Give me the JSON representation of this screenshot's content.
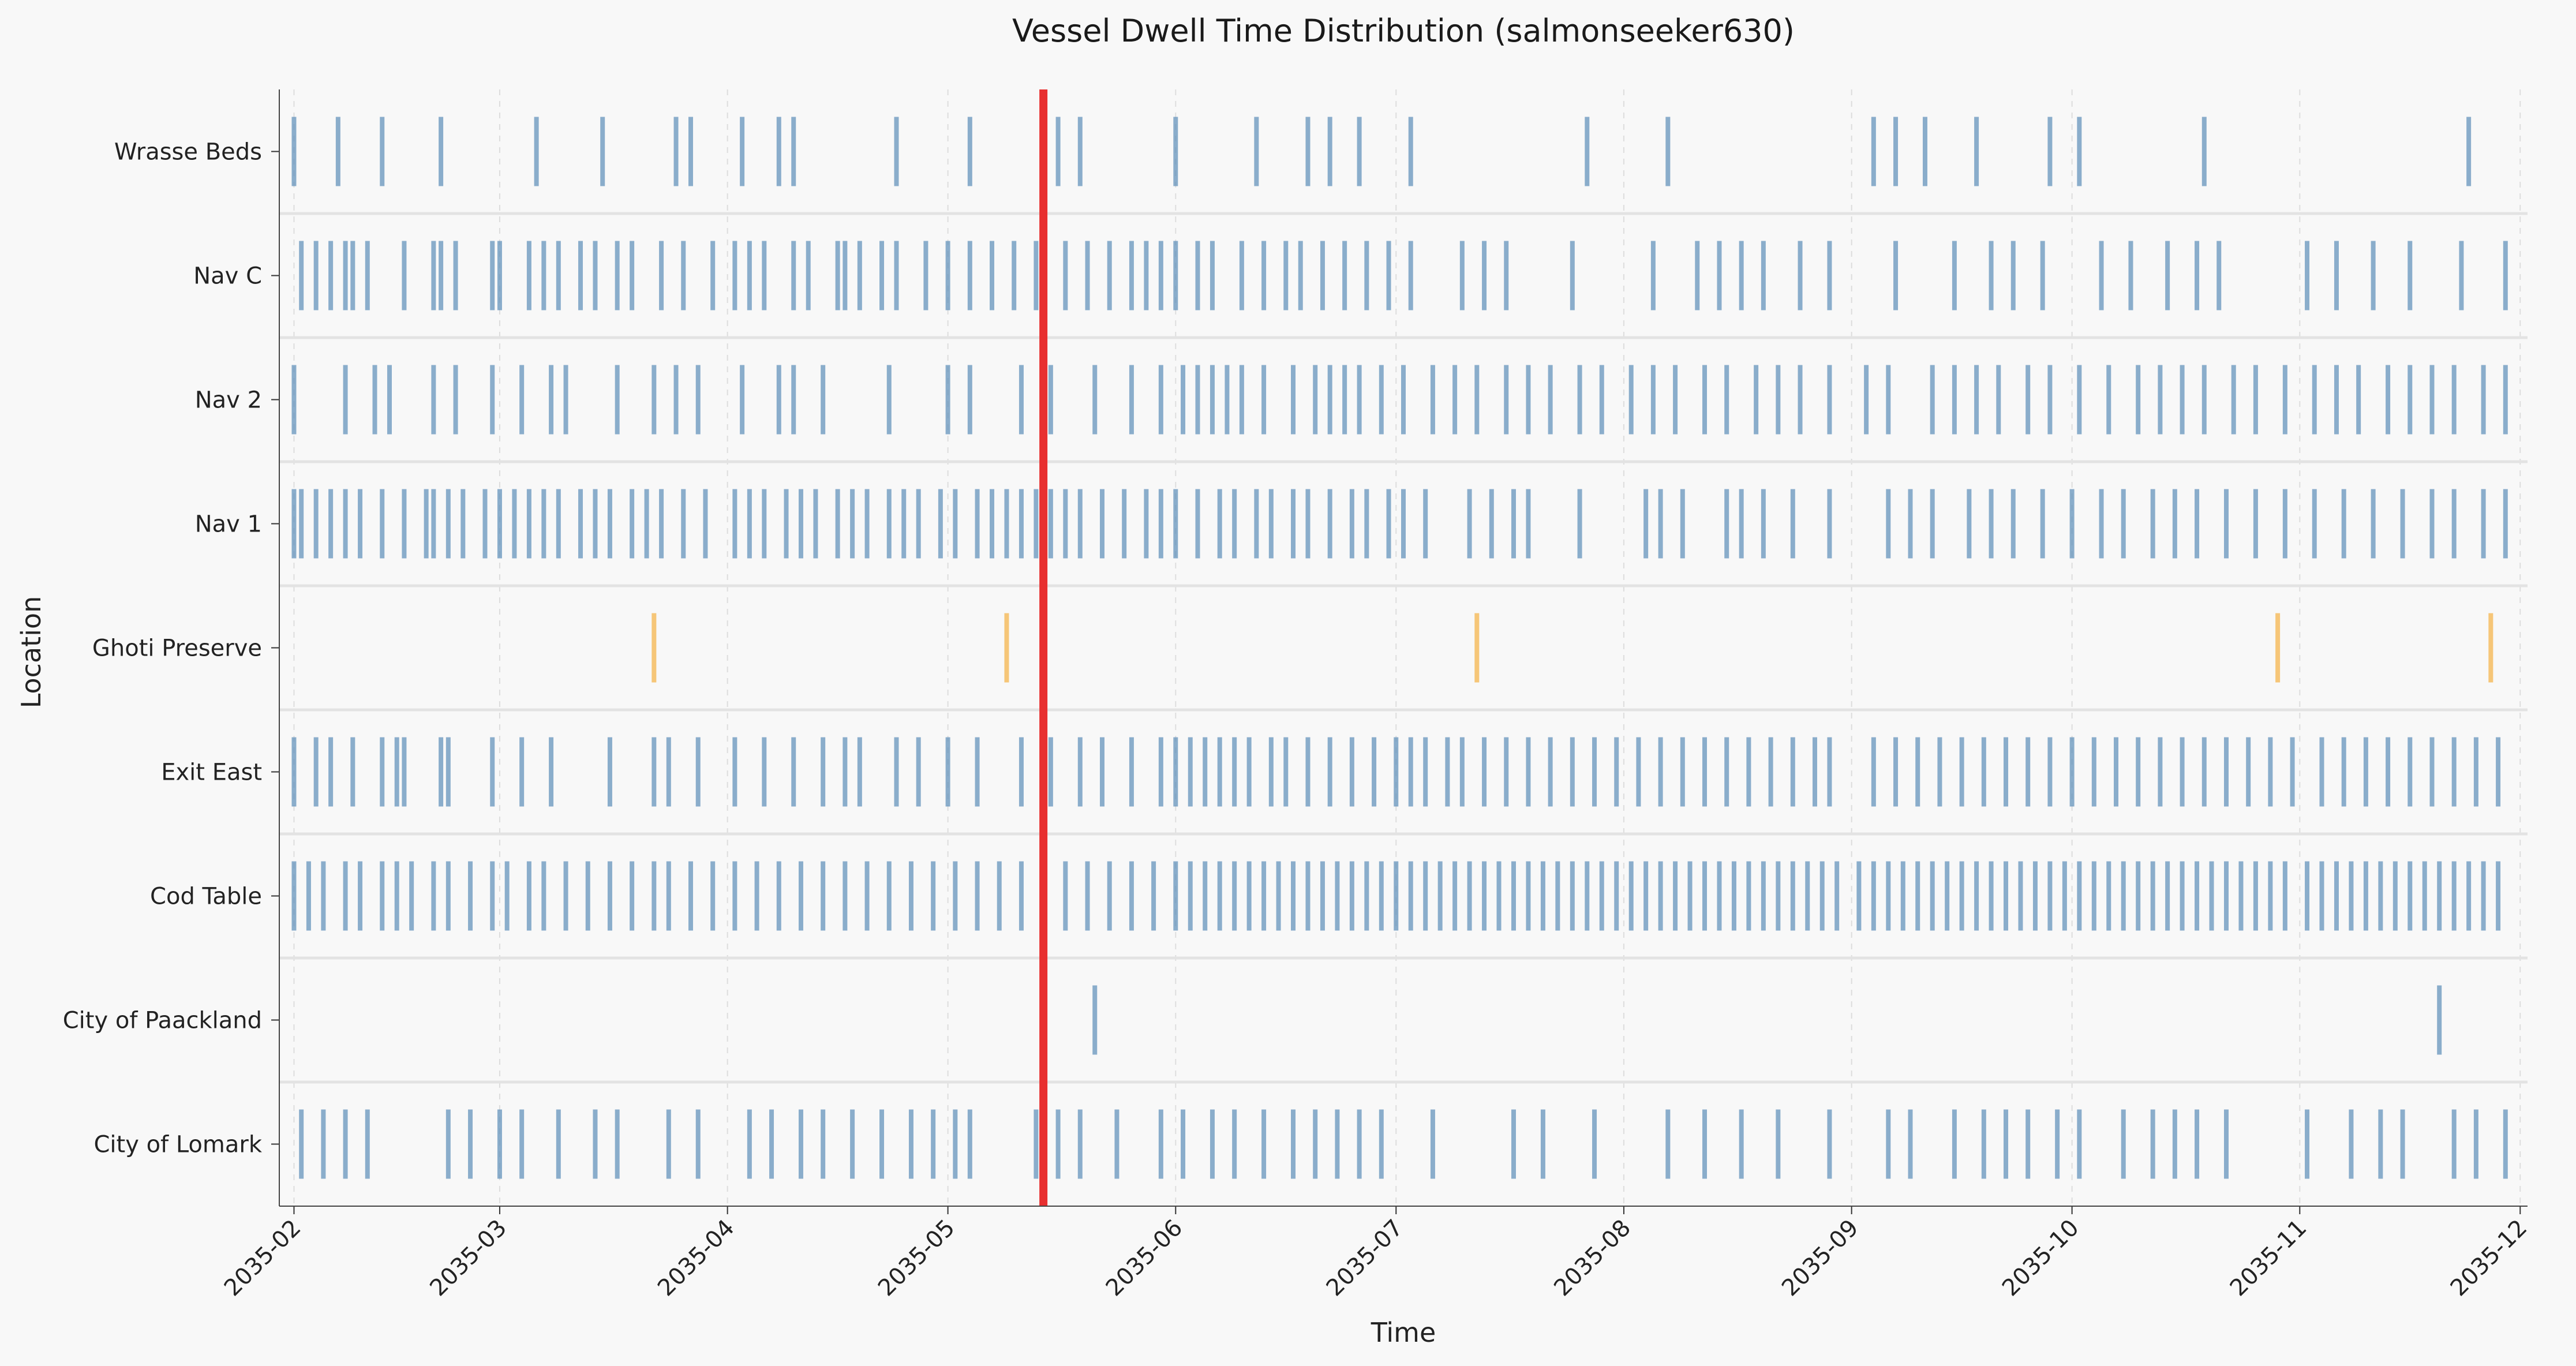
{
  "chart_data": {
    "type": "timeline",
    "title": "Vessel Dwell Time Distribution (salmonseeker630)",
    "xlabel": "Time",
    "ylabel": "Location",
    "xlim": [
      "2035-01-30",
      "2035-12-02"
    ],
    "x_ticks": [
      "2035-02",
      "2035-03",
      "2035-04",
      "2035-05",
      "2035-06",
      "2035-07",
      "2035-08",
      "2035-09",
      "2035-10",
      "2035-11",
      "2035-12"
    ],
    "grid": true,
    "highlight_line": {
      "date": "2035-05-14",
      "color": "#e83030"
    },
    "colors": {
      "default": "#5b8db8",
      "highlight": "#f5b041",
      "background": "#f8f8f8"
    },
    "rows": [
      {
        "label": "Wrasse Beds",
        "color": "#5b8db8",
        "events": [
          "2035-02-01",
          "2035-02-07",
          "2035-02-13",
          "2035-02-21",
          "2035-03-06",
          "2035-03-15",
          "2035-03-25",
          "2035-03-27",
          "2035-04-03",
          "2035-04-08",
          "2035-04-10",
          "2035-04-24",
          "2035-05-04",
          "2035-05-16",
          "2035-05-19",
          "2035-06-01",
          "2035-06-12",
          "2035-06-19",
          "2035-06-22",
          "2035-06-26",
          "2035-07-03",
          "2035-07-27",
          "2035-08-07",
          "2035-09-04",
          "2035-09-07",
          "2035-09-11",
          "2035-09-18",
          "2035-09-28",
          "2035-10-02",
          "2035-10-19",
          "2035-11-24"
        ]
      },
      {
        "label": "Nav C",
        "color": "#5b8db8",
        "events": [
          "2035-02-02",
          "2035-02-04",
          "2035-02-06",
          "2035-02-08",
          "2035-02-09",
          "2035-02-11",
          "2035-02-16",
          "2035-02-20",
          "2035-02-21",
          "2035-02-23",
          "2035-02-28",
          "2035-03-01",
          "2035-03-05",
          "2035-03-07",
          "2035-03-09",
          "2035-03-12",
          "2035-03-14",
          "2035-03-17",
          "2035-03-19",
          "2035-03-23",
          "2035-03-26",
          "2035-03-30",
          "2035-04-02",
          "2035-04-04",
          "2035-04-06",
          "2035-04-10",
          "2035-04-12",
          "2035-04-16",
          "2035-04-17",
          "2035-04-19",
          "2035-04-22",
          "2035-04-24",
          "2035-04-28",
          "2035-05-01",
          "2035-05-04",
          "2035-05-07",
          "2035-05-10",
          "2035-05-13",
          "2035-05-17",
          "2035-05-20",
          "2035-05-23",
          "2035-05-26",
          "2035-05-28",
          "2035-05-30",
          "2035-06-01",
          "2035-06-04",
          "2035-06-06",
          "2035-06-10",
          "2035-06-13",
          "2035-06-16",
          "2035-06-18",
          "2035-06-21",
          "2035-06-24",
          "2035-06-27",
          "2035-06-30",
          "2035-07-03",
          "2035-07-10",
          "2035-07-13",
          "2035-07-16",
          "2035-07-25",
          "2035-08-05",
          "2035-08-11",
          "2035-08-14",
          "2035-08-17",
          "2035-08-20",
          "2035-08-25",
          "2035-08-29",
          "2035-09-07",
          "2035-09-15",
          "2035-09-20",
          "2035-09-23",
          "2035-09-27",
          "2035-10-05",
          "2035-10-09",
          "2035-10-14",
          "2035-10-18",
          "2035-10-21",
          "2035-11-02",
          "2035-11-06",
          "2035-11-11",
          "2035-11-16",
          "2035-11-23",
          "2035-11-29"
        ]
      },
      {
        "label": "Nav 2",
        "color": "#5b8db8",
        "events": [
          "2035-02-01",
          "2035-02-08",
          "2035-02-12",
          "2035-02-14",
          "2035-02-20",
          "2035-02-23",
          "2035-02-28",
          "2035-03-04",
          "2035-03-08",
          "2035-03-10",
          "2035-03-17",
          "2035-03-22",
          "2035-03-25",
          "2035-03-28",
          "2035-04-03",
          "2035-04-08",
          "2035-04-10",
          "2035-04-14",
          "2035-04-23",
          "2035-05-01",
          "2035-05-04",
          "2035-05-11",
          "2035-05-15",
          "2035-05-21",
          "2035-05-26",
          "2035-05-30",
          "2035-06-02",
          "2035-06-04",
          "2035-06-06",
          "2035-06-08",
          "2035-06-10",
          "2035-06-13",
          "2035-06-17",
          "2035-06-20",
          "2035-06-22",
          "2035-06-24",
          "2035-06-26",
          "2035-06-29",
          "2035-07-02",
          "2035-07-06",
          "2035-07-09",
          "2035-07-12",
          "2035-07-16",
          "2035-07-19",
          "2035-07-22",
          "2035-07-26",
          "2035-07-29",
          "2035-08-02",
          "2035-08-05",
          "2035-08-08",
          "2035-08-12",
          "2035-08-15",
          "2035-08-19",
          "2035-08-22",
          "2035-08-25",
          "2035-08-29",
          "2035-09-03",
          "2035-09-06",
          "2035-09-12",
          "2035-09-15",
          "2035-09-18",
          "2035-09-21",
          "2035-09-25",
          "2035-09-28",
          "2035-10-02",
          "2035-10-06",
          "2035-10-10",
          "2035-10-13",
          "2035-10-16",
          "2035-10-19",
          "2035-10-23",
          "2035-10-26",
          "2035-10-30",
          "2035-11-03",
          "2035-11-06",
          "2035-11-09",
          "2035-11-13",
          "2035-11-16",
          "2035-11-19",
          "2035-11-22",
          "2035-11-26",
          "2035-11-29"
        ]
      },
      {
        "label": "Nav 1",
        "color": "#5b8db8",
        "events": [
          "2035-02-01",
          "2035-02-02",
          "2035-02-04",
          "2035-02-06",
          "2035-02-08",
          "2035-02-10",
          "2035-02-13",
          "2035-02-16",
          "2035-02-19",
          "2035-02-20",
          "2035-02-22",
          "2035-02-24",
          "2035-02-27",
          "2035-03-01",
          "2035-03-03",
          "2035-03-05",
          "2035-03-07",
          "2035-03-09",
          "2035-03-12",
          "2035-03-14",
          "2035-03-16",
          "2035-03-19",
          "2035-03-21",
          "2035-03-23",
          "2035-03-26",
          "2035-03-29",
          "2035-04-02",
          "2035-04-04",
          "2035-04-06",
          "2035-04-09",
          "2035-04-11",
          "2035-04-13",
          "2035-04-16",
          "2035-04-18",
          "2035-04-20",
          "2035-04-23",
          "2035-04-25",
          "2035-04-27",
          "2035-04-30",
          "2035-05-02",
          "2035-05-05",
          "2035-05-07",
          "2035-05-09",
          "2035-05-11",
          "2035-05-13",
          "2035-05-15",
          "2035-05-17",
          "2035-05-19",
          "2035-05-22",
          "2035-05-25",
          "2035-05-28",
          "2035-05-30",
          "2035-06-01",
          "2035-06-04",
          "2035-06-07",
          "2035-06-09",
          "2035-06-12",
          "2035-06-14",
          "2035-06-17",
          "2035-06-19",
          "2035-06-22",
          "2035-06-25",
          "2035-06-27",
          "2035-06-30",
          "2035-07-02",
          "2035-07-05",
          "2035-07-11",
          "2035-07-14",
          "2035-07-17",
          "2035-07-19",
          "2035-07-26",
          "2035-08-04",
          "2035-08-06",
          "2035-08-09",
          "2035-08-15",
          "2035-08-17",
          "2035-08-20",
          "2035-08-24",
          "2035-08-29",
          "2035-09-06",
          "2035-09-09",
          "2035-09-12",
          "2035-09-17",
          "2035-09-20",
          "2035-09-23",
          "2035-09-27",
          "2035-10-01",
          "2035-10-05",
          "2035-10-08",
          "2035-10-12",
          "2035-10-15",
          "2035-10-18",
          "2035-10-22",
          "2035-10-26",
          "2035-10-30",
          "2035-11-03",
          "2035-11-07",
          "2035-11-11",
          "2035-11-15",
          "2035-11-19",
          "2035-11-22",
          "2035-11-26",
          "2035-11-29"
        ]
      },
      {
        "label": "Ghoti Preserve",
        "color": "#f5b041",
        "events": [
          "2035-03-22",
          "2035-05-09",
          "2035-07-12",
          "2035-10-29",
          "2035-11-27"
        ]
      },
      {
        "label": "Exit East",
        "color": "#5b8db8",
        "events": [
          "2035-02-01",
          "2035-02-04",
          "2035-02-06",
          "2035-02-09",
          "2035-02-13",
          "2035-02-15",
          "2035-02-16",
          "2035-02-21",
          "2035-02-22",
          "2035-02-28",
          "2035-03-04",
          "2035-03-08",
          "2035-03-16",
          "2035-03-22",
          "2035-03-24",
          "2035-03-28",
          "2035-04-02",
          "2035-04-06",
          "2035-04-10",
          "2035-04-14",
          "2035-04-17",
          "2035-04-19",
          "2035-04-24",
          "2035-04-27",
          "2035-05-01",
          "2035-05-05",
          "2035-05-11",
          "2035-05-15",
          "2035-05-19",
          "2035-05-22",
          "2035-05-26",
          "2035-05-30",
          "2035-06-01",
          "2035-06-03",
          "2035-06-05",
          "2035-06-07",
          "2035-06-09",
          "2035-06-11",
          "2035-06-14",
          "2035-06-16",
          "2035-06-19",
          "2035-06-22",
          "2035-06-25",
          "2035-06-28",
          "2035-07-01",
          "2035-07-03",
          "2035-07-05",
          "2035-07-08",
          "2035-07-10",
          "2035-07-13",
          "2035-07-16",
          "2035-07-19",
          "2035-07-22",
          "2035-07-25",
          "2035-07-28",
          "2035-07-31",
          "2035-08-03",
          "2035-08-06",
          "2035-08-09",
          "2035-08-12",
          "2035-08-15",
          "2035-08-18",
          "2035-08-21",
          "2035-08-24",
          "2035-08-27",
          "2035-08-29",
          "2035-09-04",
          "2035-09-07",
          "2035-09-10",
          "2035-09-13",
          "2035-09-16",
          "2035-09-19",
          "2035-09-22",
          "2035-09-25",
          "2035-09-28",
          "2035-10-01",
          "2035-10-04",
          "2035-10-07",
          "2035-10-10",
          "2035-10-13",
          "2035-10-16",
          "2035-10-19",
          "2035-10-22",
          "2035-10-25",
          "2035-10-28",
          "2035-10-31",
          "2035-11-04",
          "2035-11-07",
          "2035-11-10",
          "2035-11-13",
          "2035-11-16",
          "2035-11-19",
          "2035-11-22",
          "2035-11-25",
          "2035-11-28"
        ]
      },
      {
        "label": "Cod Table",
        "color": "#5b8db8",
        "events": [
          "2035-02-01",
          "2035-02-03",
          "2035-02-05",
          "2035-02-08",
          "2035-02-10",
          "2035-02-13",
          "2035-02-15",
          "2035-02-17",
          "2035-02-20",
          "2035-02-22",
          "2035-02-25",
          "2035-02-28",
          "2035-03-02",
          "2035-03-05",
          "2035-03-07",
          "2035-03-10",
          "2035-03-13",
          "2035-03-16",
          "2035-03-19",
          "2035-03-22",
          "2035-03-24",
          "2035-03-27",
          "2035-03-30",
          "2035-04-02",
          "2035-04-05",
          "2035-04-08",
          "2035-04-11",
          "2035-04-14",
          "2035-04-17",
          "2035-04-20",
          "2035-04-23",
          "2035-04-26",
          "2035-04-29",
          "2035-05-02",
          "2035-05-05",
          "2035-05-08",
          "2035-05-11",
          "2035-05-14",
          "2035-05-17",
          "2035-05-20",
          "2035-05-23",
          "2035-05-26",
          "2035-05-29",
          "2035-06-01",
          "2035-06-03",
          "2035-06-05",
          "2035-06-07",
          "2035-06-09",
          "2035-06-11",
          "2035-06-13",
          "2035-06-15",
          "2035-06-17",
          "2035-06-19",
          "2035-06-21",
          "2035-06-23",
          "2035-06-25",
          "2035-06-27",
          "2035-06-29",
          "2035-07-01",
          "2035-07-03",
          "2035-07-05",
          "2035-07-07",
          "2035-07-09",
          "2035-07-11",
          "2035-07-13",
          "2035-07-15",
          "2035-07-17",
          "2035-07-19",
          "2035-07-21",
          "2035-07-23",
          "2035-07-25",
          "2035-07-27",
          "2035-07-29",
          "2035-07-31",
          "2035-08-02",
          "2035-08-04",
          "2035-08-06",
          "2035-08-08",
          "2035-08-10",
          "2035-08-12",
          "2035-08-14",
          "2035-08-16",
          "2035-08-18",
          "2035-08-20",
          "2035-08-22",
          "2035-08-24",
          "2035-08-26",
          "2035-08-28",
          "2035-08-30",
          "2035-09-02",
          "2035-09-04",
          "2035-09-06",
          "2035-09-08",
          "2035-09-10",
          "2035-09-12",
          "2035-09-14",
          "2035-09-16",
          "2035-09-18",
          "2035-09-20",
          "2035-09-22",
          "2035-09-24",
          "2035-09-26",
          "2035-09-28",
          "2035-09-30",
          "2035-10-02",
          "2035-10-04",
          "2035-10-06",
          "2035-10-08",
          "2035-10-10",
          "2035-10-12",
          "2035-10-14",
          "2035-10-16",
          "2035-10-18",
          "2035-10-20",
          "2035-10-22",
          "2035-10-24",
          "2035-10-26",
          "2035-10-28",
          "2035-10-30",
          "2035-11-02",
          "2035-11-04",
          "2035-11-06",
          "2035-11-08",
          "2035-11-10",
          "2035-11-12",
          "2035-11-14",
          "2035-11-16",
          "2035-11-18",
          "2035-11-20",
          "2035-11-22",
          "2035-11-24",
          "2035-11-26",
          "2035-11-28"
        ]
      },
      {
        "label": "City of Paackland",
        "color": "#5b8db8",
        "events": [
          "2035-05-21",
          "2035-11-20"
        ]
      },
      {
        "label": "City of Lomark",
        "color": "#5b8db8",
        "events": [
          "2035-02-02",
          "2035-02-05",
          "2035-02-08",
          "2035-02-11",
          "2035-02-22",
          "2035-02-25",
          "2035-03-01",
          "2035-03-04",
          "2035-03-09",
          "2035-03-14",
          "2035-03-17",
          "2035-03-24",
          "2035-03-28",
          "2035-04-04",
          "2035-04-07",
          "2035-04-11",
          "2035-04-14",
          "2035-04-18",
          "2035-04-22",
          "2035-04-26",
          "2035-04-29",
          "2035-05-02",
          "2035-05-04",
          "2035-05-13",
          "2035-05-16",
          "2035-05-19",
          "2035-05-24",
          "2035-05-30",
          "2035-06-02",
          "2035-06-06",
          "2035-06-09",
          "2035-06-13",
          "2035-06-17",
          "2035-06-20",
          "2035-06-23",
          "2035-06-26",
          "2035-06-29",
          "2035-07-06",
          "2035-07-17",
          "2035-07-21",
          "2035-07-28",
          "2035-08-07",
          "2035-08-12",
          "2035-08-17",
          "2035-08-22",
          "2035-08-29",
          "2035-09-06",
          "2035-09-09",
          "2035-09-15",
          "2035-09-19",
          "2035-09-22",
          "2035-09-25",
          "2035-09-29",
          "2035-10-02",
          "2035-10-08",
          "2035-10-12",
          "2035-10-15",
          "2035-10-18",
          "2035-10-22",
          "2035-11-02",
          "2035-11-08",
          "2035-11-12",
          "2035-11-15",
          "2035-11-22",
          "2035-11-25",
          "2035-11-29"
        ]
      }
    ]
  }
}
